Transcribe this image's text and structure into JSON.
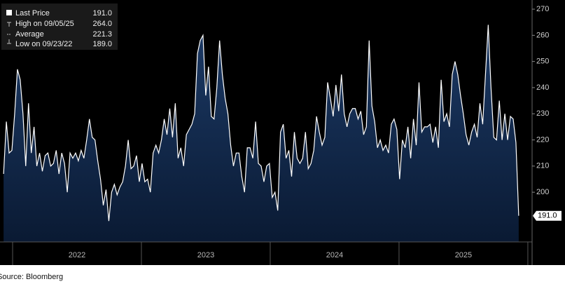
{
  "chart_data": {
    "type": "area",
    "legend": [
      {
        "label": "Last Price",
        "value": "191.0"
      },
      {
        "label": "High on 09/05/25",
        "value": "264.0"
      },
      {
        "label": "Average",
        "value": "221.3"
      },
      {
        "label": "Low on 09/23/22",
        "value": "189.0"
      }
    ],
    "last_label": "191.0",
    "source": "Source: Bloomberg",
    "line_color": "#ffffff",
    "fill_color": "#10284a",
    "xlim": [
      2021.93,
      2026.033
    ],
    "ylim": [
      181,
      273.5
    ],
    "yticks": [
      200,
      210,
      220,
      230,
      240,
      250,
      260,
      270
    ],
    "xticks": [
      {
        "value": 2022.5,
        "label": "2022"
      },
      {
        "value": 2023.5,
        "label": "2023"
      },
      {
        "value": 2024.5,
        "label": "2024"
      },
      {
        "value": 2025.5,
        "label": "2025"
      }
    ],
    "x": [
      2021.93,
      2021.9515,
      2021.973,
      2021.9945,
      2022.016,
      2022.0375,
      2022.059,
      2022.0805,
      2022.102,
      2022.1235,
      2022.145,
      2022.1665,
      2022.188,
      2022.2095,
      2022.231,
      2022.2525,
      2022.274,
      2022.2955,
      2022.317,
      2022.3385,
      2022.36,
      2022.3815,
      2022.403,
      2022.4245,
      2022.446,
      2022.4675,
      2022.489,
      2022.5105,
      2022.532,
      2022.5535,
      2022.575,
      2022.5965,
      2022.618,
      2022.6395,
      2022.661,
      2022.6825,
      2022.704,
      2022.7255,
      2022.747,
      2022.7685,
      2022.79,
      2022.8115,
      2022.833,
      2022.8545,
      2022.876,
      2022.8975,
      2022.919,
      2022.9405,
      2022.962,
      2022.9835,
      2023.005,
      2023.0265,
      2023.048,
      2023.0695,
      2023.091,
      2023.1125,
      2023.134,
      2023.1555,
      2023.177,
      2023.1985,
      2023.22,
      2023.2415,
      2023.263,
      2023.2845,
      2023.306,
      2023.3275,
      2023.349,
      2023.3705,
      2023.392,
      2023.4135,
      2023.435,
      2023.4565,
      2023.478,
      2023.4995,
      2023.521,
      2023.5425,
      2023.564,
      2023.5855,
      2023.607,
      2023.6285,
      2023.65,
      2023.6715,
      2023.693,
      2023.7145,
      2023.736,
      2023.7575,
      2023.779,
      2023.8005,
      2023.822,
      2023.8435,
      2023.865,
      2023.8865,
      2023.908,
      2023.9295,
      2023.951,
      2023.9725,
      2023.994,
      2024.0155,
      2024.037,
      2024.0585,
      2024.08,
      2024.1015,
      2024.123,
      2024.1445,
      2024.166,
      2024.1875,
      2024.209,
      2024.2305,
      2024.252,
      2024.2735,
      2024.295,
      2024.3165,
      2024.338,
      2024.3595,
      2024.381,
      2024.4025,
      2024.424,
      2024.4455,
      2024.467,
      2024.4885,
      2024.51,
      2024.5315,
      2024.553,
      2024.5745,
      2024.596,
      2024.6175,
      2024.639,
      2024.6605,
      2024.682,
      2024.7035,
      2024.725,
      2024.7465,
      2024.768,
      2024.7895,
      2024.811,
      2024.8325,
      2024.854,
      2024.8755,
      2024.897,
      2024.9185,
      2024.94,
      2024.9615,
      2024.983,
      2025.0045,
      2025.026,
      2025.0475,
      2025.069,
      2025.0905,
      2025.112,
      2025.1335,
      2025.155,
      2025.1765,
      2025.198,
      2025.2195,
      2025.241,
      2025.2625,
      2025.284,
      2025.3055,
      2025.327,
      2025.3485,
      2025.37,
      2025.3915,
      2025.413,
      2025.4345,
      2025.456,
      2025.4775,
      2025.499,
      2025.5205,
      2025.542,
      2025.5635,
      2025.585,
      2025.6065,
      2025.628,
      2025.6495,
      2025.671,
      2025.6925,
      2025.714,
      2025.7355,
      2025.757,
      2025.7785,
      2025.8,
      2025.8215,
      2025.843,
      2025.8645,
      2025.886,
      2025.9075,
      2025.929
    ],
    "values": [
      207,
      227,
      215,
      216,
      230,
      247,
      243,
      230,
      210,
      234,
      215,
      225,
      210,
      215,
      208,
      214,
      215,
      210,
      211,
      216,
      207,
      215,
      211,
      200,
      215,
      213,
      215,
      212,
      216,
      213,
      220,
      228,
      221,
      220,
      212,
      205,
      195,
      201,
      189,
      200,
      203,
      199,
      202,
      204,
      210,
      220,
      209,
      210,
      214,
      204,
      211,
      204,
      205,
      200,
      215,
      218,
      215,
      220,
      228,
      222,
      232,
      221,
      234,
      213,
      217,
      210,
      222,
      224,
      226,
      230,
      253,
      258,
      260,
      237,
      248,
      229,
      228,
      240,
      258,
      245,
      236,
      230,
      218,
      210,
      215,
      215,
      206,
      200,
      217,
      217,
      213,
      227,
      211,
      210,
      204,
      210,
      211,
      198,
      200,
      193,
      223,
      226,
      213,
      216,
      206,
      223,
      213,
      211,
      213,
      223,
      209,
      211,
      216,
      229,
      223,
      218,
      221,
      242,
      236,
      229,
      241,
      231,
      245,
      230,
      225,
      230,
      232,
      232,
      228,
      231,
      222,
      225,
      258,
      233,
      227,
      217,
      220,
      216,
      218,
      215,
      226,
      228,
      224,
      205,
      220,
      217,
      225,
      213,
      228,
      218,
      242,
      223,
      225,
      225,
      226,
      219,
      225,
      217,
      243,
      227,
      230,
      225,
      245,
      250,
      245,
      237,
      230,
      222,
      218,
      223,
      226,
      221,
      234,
      226,
      245,
      264,
      240,
      221,
      220,
      235,
      220,
      230,
      220,
      229,
      228,
      219,
      191
    ]
  }
}
